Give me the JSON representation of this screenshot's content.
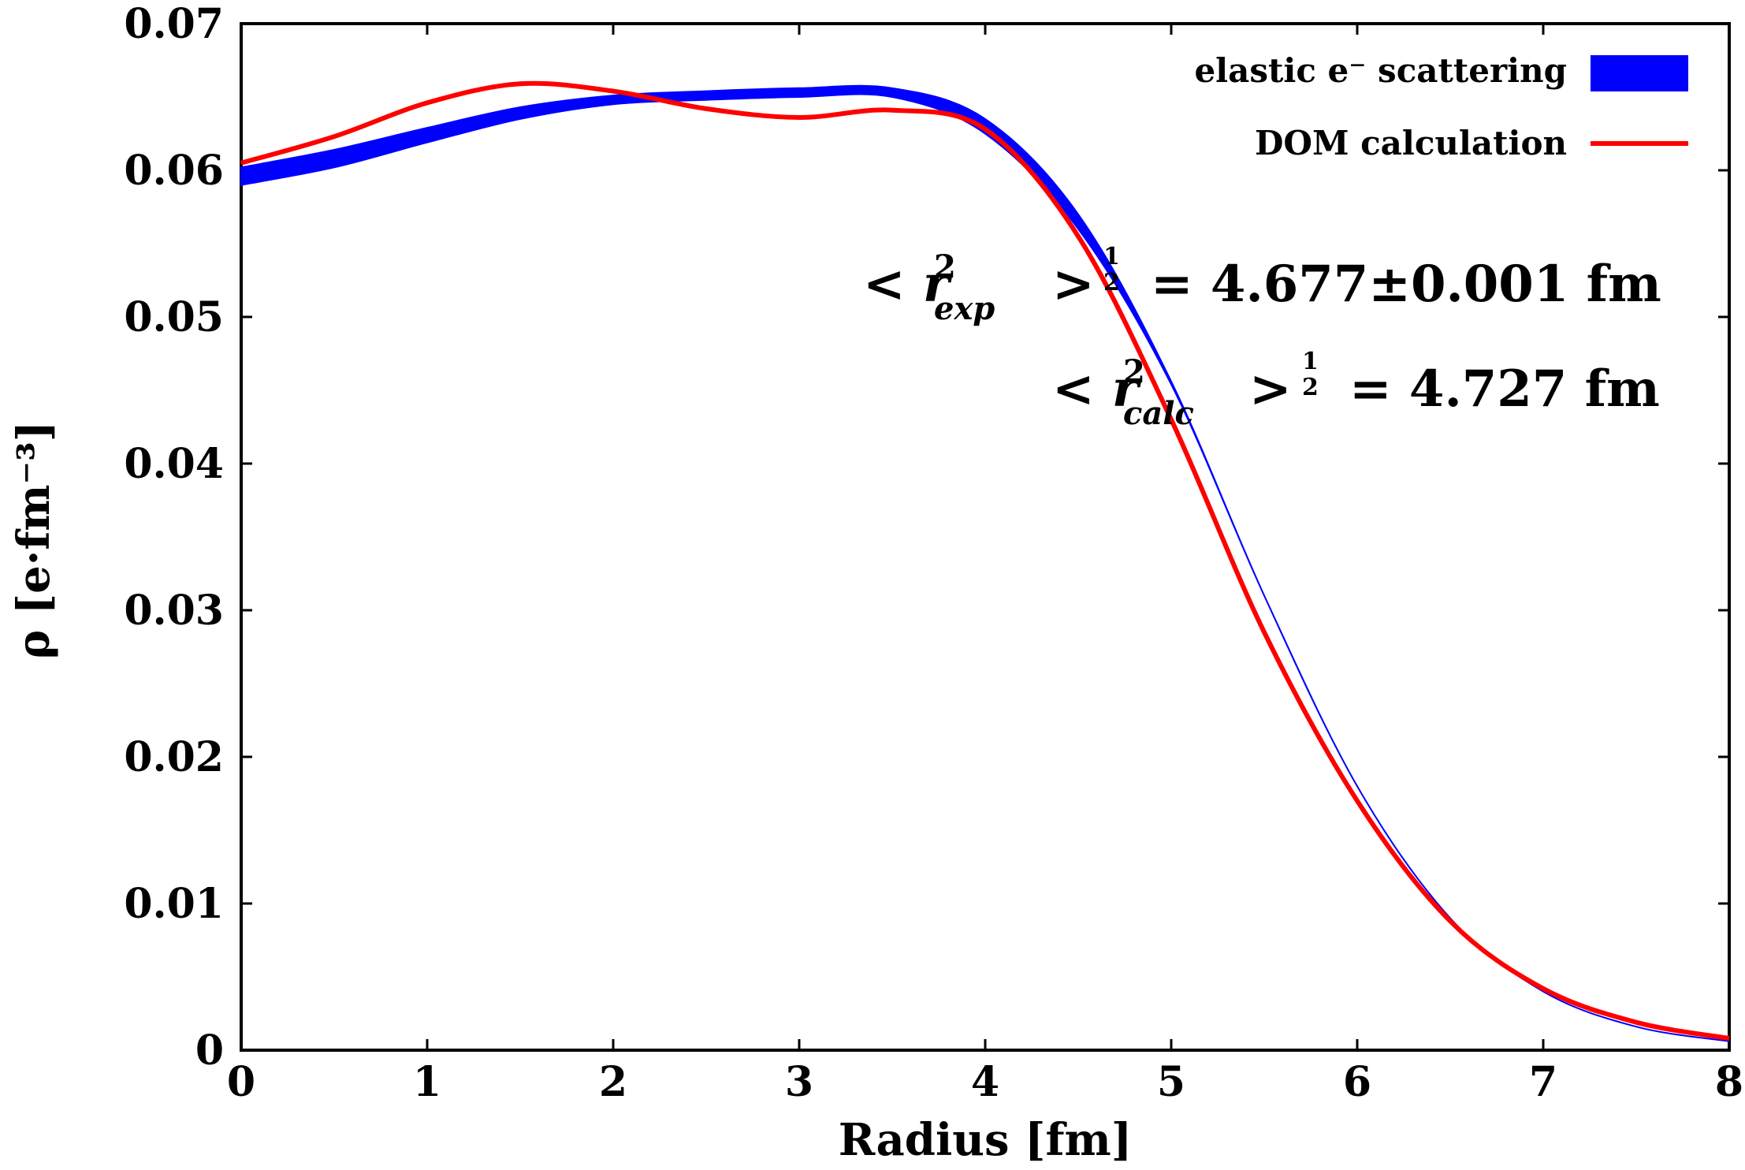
{
  "chart_data": {
    "type": "line",
    "xlabel": "Radius [fm]",
    "ylabel": "ρ [e·fm⁻³]",
    "xlim": [
      0,
      8
    ],
    "ylim": [
      0,
      0.07
    ],
    "xticks": [
      "0",
      "1",
      "2",
      "3",
      "4",
      "5",
      "6",
      "7",
      "8"
    ],
    "yticks": [
      "0",
      "0.01",
      "0.02",
      "0.03",
      "0.04",
      "0.05",
      "0.06",
      "0.07"
    ],
    "grid": false,
    "legend_position": "top-right",
    "series": [
      {
        "name": "elastic e⁻ scattering",
        "style": "band",
        "color": "#0000ff",
        "x": [
          0.0,
          0.5,
          1.0,
          1.5,
          2.0,
          2.5,
          3.0,
          3.5,
          4.0,
          4.5,
          5.0,
          5.5,
          6.0,
          6.5,
          7.0,
          7.5,
          8.0
        ],
        "y": [
          0.0596,
          0.0608,
          0.0624,
          0.0639,
          0.0648,
          0.0651,
          0.0653,
          0.0653,
          0.063,
          0.0565,
          0.0455,
          0.031,
          0.018,
          0.009,
          0.004,
          0.0016,
          0.0006
        ],
        "y_low": [
          0.059,
          0.0602,
          0.0619,
          0.0635,
          0.0645,
          0.0648,
          0.065,
          0.065,
          0.0625,
          0.056,
          0.0454,
          0.031,
          0.018,
          0.009,
          0.004,
          0.0016,
          0.0006
        ],
        "y_high": [
          0.0602,
          0.0614,
          0.0629,
          0.0643,
          0.0651,
          0.0654,
          0.0656,
          0.0656,
          0.0635,
          0.057,
          0.0456,
          0.031,
          0.018,
          0.009,
          0.004,
          0.0016,
          0.0006
        ]
      },
      {
        "name": "DOM calculation",
        "style": "line",
        "color": "#ff0000",
        "x": [
          0.0,
          0.5,
          1.0,
          1.5,
          2.0,
          2.5,
          3.0,
          3.5,
          4.0,
          4.5,
          5.0,
          5.5,
          6.0,
          6.5,
          7.0,
          7.5,
          8.0
        ],
        "y": [
          0.0605,
          0.0623,
          0.0646,
          0.0659,
          0.0654,
          0.0642,
          0.0636,
          0.0641,
          0.0628,
          0.0555,
          0.043,
          0.0285,
          0.017,
          0.0088,
          0.0042,
          0.0019,
          0.0008
        ]
      }
    ],
    "annotations": {
      "exp": {
        "lhs": "< r",
        "sup": "2",
        "sub": "exp",
        "rhs_op": ">",
        "exp_num": "1",
        "exp_den": "2",
        "rhs": "= 4.677±0.001 fm"
      },
      "calc": {
        "lhs": "< r",
        "sup": "2",
        "sub": "calc",
        "rhs_op": ">",
        "exp_num": "1",
        "exp_den": "2",
        "rhs": "= 4.727 fm"
      }
    }
  }
}
